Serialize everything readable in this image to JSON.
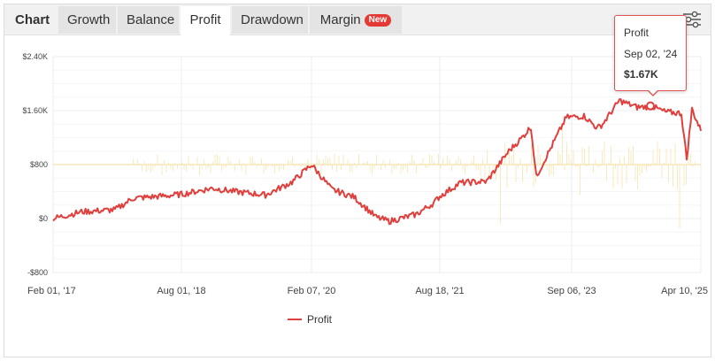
{
  "tabs": {
    "title": "Chart",
    "items": [
      {
        "label": "Growth",
        "active": false
      },
      {
        "label": "Balance",
        "active": false
      },
      {
        "label": "Profit",
        "active": true
      },
      {
        "label": "Drawdown",
        "active": false
      },
      {
        "label": "Margin",
        "active": false,
        "badge": "New"
      }
    ]
  },
  "icons": {
    "settings": "sliders-icon"
  },
  "colors": {
    "profit_line": "#e0403d",
    "volume_bars": "#f7e3a8"
  },
  "tooltip": {
    "series": "Profit",
    "date": "Sep 02, '24",
    "value": "$1.67K"
  },
  "legend": {
    "label": "Profit"
  },
  "chart_data": {
    "type": "line",
    "x_ticks": [
      "Feb 01, '17",
      "Aug 01, '18",
      "Feb 07, '20",
      "Aug 18, '21",
      "Sep 06, '23",
      "Apr 10, '25"
    ],
    "y_ticks": [
      "$2.40K",
      "$1.60K",
      "$800",
      "$0",
      "-$800"
    ],
    "ylim": [
      -800,
      2400
    ],
    "grid": true,
    "legend_position": "bottom-center",
    "series": [
      {
        "name": "Profit",
        "x": [
          "Feb 01, '17",
          "Jun '17",
          "Dec '17",
          "Feb '18",
          "Jun '18",
          "Aug 01, '18",
          "Dec '18",
          "Mar '19",
          "Jun '19",
          "Oct '19",
          "Feb 07, '20",
          "Apr '20",
          "Jul '20",
          "Sep '20",
          "Nov '20",
          "Jan '21",
          "Apr '21",
          "Aug 18, '21",
          "Dec '21",
          "Mar '22",
          "May '22",
          "Jul '22",
          "Sep '22",
          "Nov '22",
          "Jan '23",
          "Apr '23",
          "Jul '23",
          "Sep 06, '23",
          "Nov '23",
          "Feb '24",
          "May '24",
          "Sep 02, '24",
          "Nov '24",
          "Jan '25",
          "Feb '25",
          "Mar '25",
          "Apr 10, '25"
        ],
        "values": [
          0,
          100,
          130,
          300,
          340,
          360,
          450,
          400,
          350,
          540,
          800,
          430,
          320,
          20,
          -40,
          60,
          230,
          330,
          530,
          550,
          1000,
          1200,
          1360,
          620,
          1500,
          1520,
          1340,
          1400,
          1750,
          1650,
          1660,
          1670,
          1580,
          1560,
          880,
          1620,
          1300
        ]
      }
    ]
  }
}
